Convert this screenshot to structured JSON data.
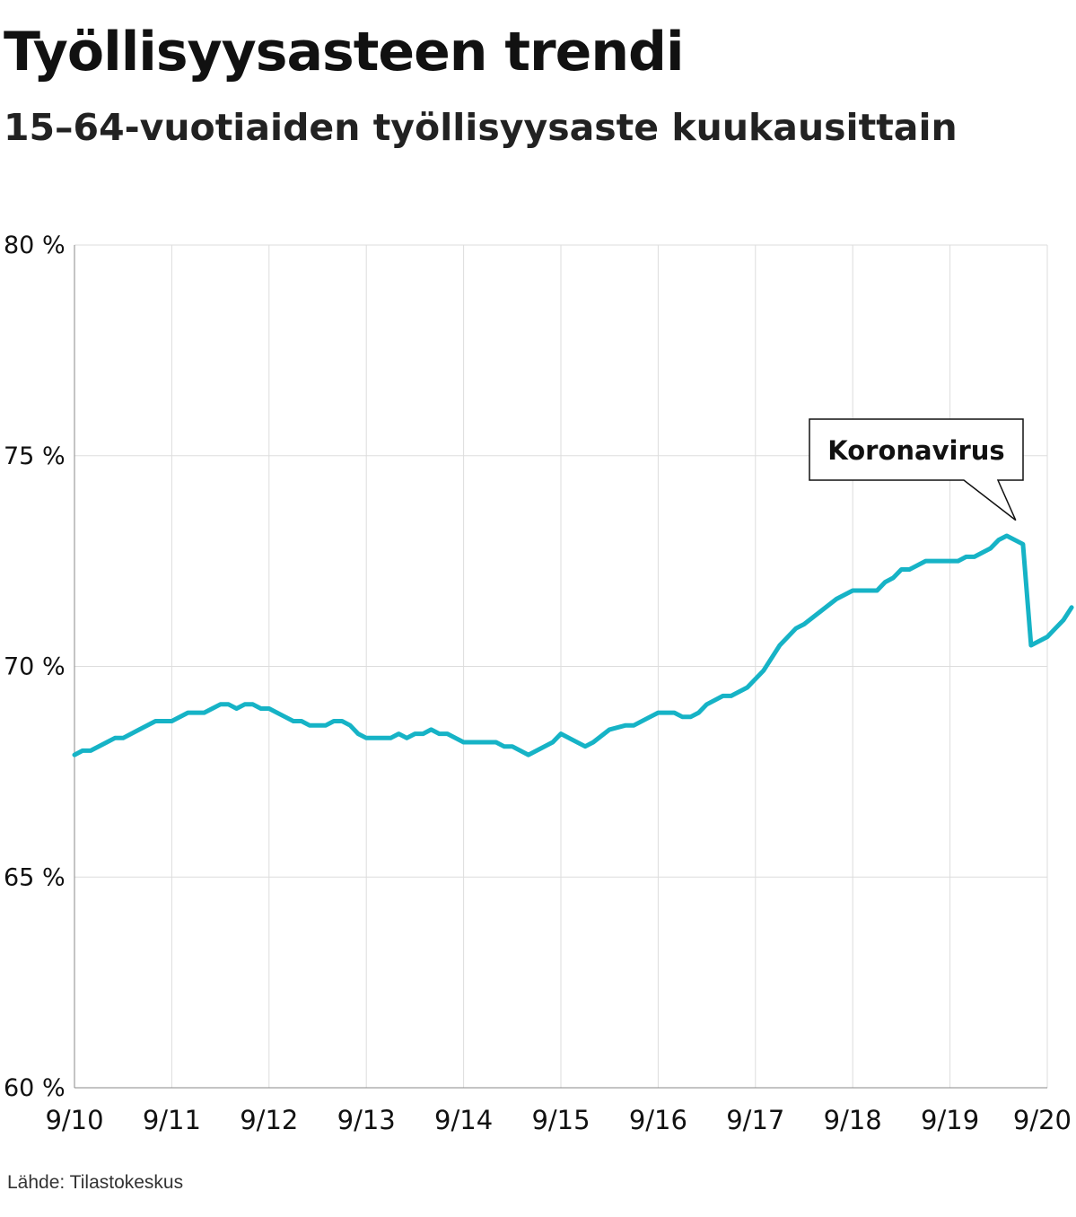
{
  "title": "Työllisyysasteen trendi",
  "subtitle": "15–64-vuotiaiden työllisyysaste kuukausittain",
  "source": "Lähde: Tilastokeskus",
  "annotation": {
    "label": "Koronavirus",
    "x": 2020.25,
    "y": 73.0
  },
  "colors": {
    "line": "#16b3c6",
    "grid": "#dddddd",
    "text": "#111111"
  },
  "chart_data": {
    "type": "line",
    "title": "Työllisyysasteen trendi",
    "subtitle": "15–64-vuotiaiden työllisyysaste kuukausittain",
    "xlabel": "",
    "ylabel": "",
    "ylim": [
      60,
      80
    ],
    "yticks": [
      60,
      65,
      70,
      75,
      80
    ],
    "ytick_labels": [
      "60 %",
      "65 %",
      "70 %",
      "75 %",
      "80 %"
    ],
    "xlim": [
      2010.667,
      2020.667
    ],
    "xticks": [
      2010.667,
      2011.667,
      2012.667,
      2013.667,
      2014.667,
      2015.667,
      2016.667,
      2017.667,
      2018.667,
      2019.667,
      2020.667
    ],
    "xtick_labels": [
      "9/10",
      "9/11",
      "9/12",
      "9/13",
      "9/14",
      "9/15",
      "9/16",
      "9/17",
      "9/18",
      "9/19",
      "9/20"
    ],
    "grid": true,
    "legend": "none",
    "series": [
      {
        "points": [
          [
            2010.667,
            67.9
          ],
          [
            2010.75,
            68.0
          ],
          [
            2010.833,
            68.0
          ],
          [
            2011.0,
            68.2
          ],
          [
            2011.083,
            68.3
          ],
          [
            2011.167,
            68.3
          ],
          [
            2011.333,
            68.5
          ],
          [
            2011.5,
            68.7
          ],
          [
            2011.667,
            68.7
          ],
          [
            2011.833,
            68.9
          ],
          [
            2012.0,
            68.9
          ],
          [
            2012.083,
            69.0
          ],
          [
            2012.167,
            69.1
          ],
          [
            2012.25,
            69.1
          ],
          [
            2012.333,
            69.0
          ],
          [
            2012.417,
            69.1
          ],
          [
            2012.5,
            69.1
          ],
          [
            2012.583,
            69.0
          ],
          [
            2012.667,
            69.0
          ],
          [
            2012.833,
            68.8
          ],
          [
            2012.917,
            68.7
          ],
          [
            2013.0,
            68.7
          ],
          [
            2013.083,
            68.6
          ],
          [
            2013.25,
            68.6
          ],
          [
            2013.333,
            68.7
          ],
          [
            2013.417,
            68.7
          ],
          [
            2013.5,
            68.6
          ],
          [
            2013.583,
            68.4
          ],
          [
            2013.667,
            68.3
          ],
          [
            2013.917,
            68.3
          ],
          [
            2014.0,
            68.4
          ],
          [
            2014.083,
            68.3
          ],
          [
            2014.167,
            68.4
          ],
          [
            2014.25,
            68.4
          ],
          [
            2014.333,
            68.5
          ],
          [
            2014.417,
            68.4
          ],
          [
            2014.5,
            68.4
          ],
          [
            2014.667,
            68.2
          ],
          [
            2015.0,
            68.2
          ],
          [
            2015.083,
            68.1
          ],
          [
            2015.167,
            68.1
          ],
          [
            2015.333,
            67.9
          ],
          [
            2015.583,
            68.2
          ],
          [
            2015.667,
            68.4
          ],
          [
            2015.917,
            68.1
          ],
          [
            2016.0,
            68.2
          ],
          [
            2016.167,
            68.5
          ],
          [
            2016.333,
            68.6
          ],
          [
            2016.417,
            68.6
          ],
          [
            2016.583,
            68.8
          ],
          [
            2016.667,
            68.9
          ],
          [
            2016.833,
            68.9
          ],
          [
            2016.917,
            68.8
          ],
          [
            2017.0,
            68.8
          ],
          [
            2017.083,
            68.9
          ],
          [
            2017.167,
            69.1
          ],
          [
            2017.333,
            69.3
          ],
          [
            2017.417,
            69.3
          ],
          [
            2017.583,
            69.5
          ],
          [
            2017.75,
            69.9
          ],
          [
            2017.917,
            70.5
          ],
          [
            2018.083,
            70.9
          ],
          [
            2018.167,
            71.0
          ],
          [
            2018.5,
            71.6
          ],
          [
            2018.667,
            71.8
          ],
          [
            2018.917,
            71.8
          ],
          [
            2019.0,
            72.0
          ],
          [
            2019.083,
            72.1
          ],
          [
            2019.167,
            72.3
          ],
          [
            2019.25,
            72.3
          ],
          [
            2019.417,
            72.5
          ],
          [
            2019.75,
            72.5
          ],
          [
            2019.833,
            72.6
          ],
          [
            2019.917,
            72.6
          ],
          [
            2020.083,
            72.8
          ],
          [
            2020.167,
            73.0
          ],
          [
            2020.25,
            73.1
          ],
          [
            2020.417,
            72.9
          ],
          [
            2020.5,
            70.5
          ],
          [
            2020.667,
            70.7
          ],
          [
            2020.75,
            70.9
          ],
          [
            2020.833,
            71.1
          ],
          [
            2020.917,
            71.4
          ]
        ]
      }
    ]
  }
}
